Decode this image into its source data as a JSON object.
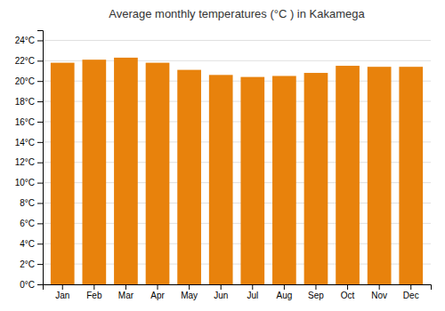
{
  "chart_data": {
    "type": "bar",
    "title": "Average monthly temperatures (°C ) in Kakamega",
    "categories": [
      "Jan",
      "Feb",
      "Mar",
      "Apr",
      "May",
      "Jun",
      "Jul",
      "Aug",
      "Sep",
      "Oct",
      "Nov",
      "Dec"
    ],
    "values": [
      21.8,
      22.1,
      22.3,
      21.8,
      21.1,
      20.6,
      20.4,
      20.5,
      20.8,
      21.5,
      21.4,
      21.4
    ],
    "color": "#E8820C",
    "ylim": [
      0,
      25
    ],
    "yticks": [
      {
        "value": 0,
        "label": "0°C"
      },
      {
        "value": 2,
        "label": "2°C"
      },
      {
        "value": 4,
        "label": "4°C"
      },
      {
        "value": 6,
        "label": "6°C"
      },
      {
        "value": 8,
        "label": "8°C"
      },
      {
        "value": 10,
        "label": "10°C"
      },
      {
        "value": 12,
        "label": "12°C"
      },
      {
        "value": 14,
        "label": "14°C"
      },
      {
        "value": 16,
        "label": "16°C"
      },
      {
        "value": 18,
        "label": "18°C"
      },
      {
        "value": 20,
        "label": "20°C"
      },
      {
        "value": 22,
        "label": "22°C"
      },
      {
        "value": 24,
        "label": "24°C"
      }
    ],
    "grid": true
  }
}
